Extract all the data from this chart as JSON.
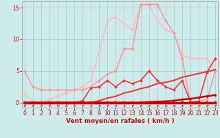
{
  "x": [
    0,
    1,
    2,
    3,
    4,
    5,
    6,
    7,
    8,
    9,
    10,
    11,
    12,
    13,
    14,
    15,
    16,
    17,
    18,
    19,
    20,
    21,
    22,
    23
  ],
  "lines": [
    {
      "y": [
        0.0,
        0.0,
        0.0,
        0.0,
        0.0,
        0.0,
        0.0,
        0.0,
        0.0,
        0.0,
        0.0,
        0.0,
        0.0,
        0.0,
        0.0,
        0.0,
        0.0,
        0.0,
        0.0,
        0.0,
        0.0,
        0.0,
        0.0,
        0.0
      ],
      "color": "#cc0000",
      "lw": 2.5,
      "marker": "s",
      "ms": 2.5,
      "zorder": 10
    },
    {
      "y": [
        0.0,
        0.0,
        0.0,
        0.0,
        0.0,
        0.0,
        0.0,
        0.0,
        0.0,
        0.0,
        0.0,
        0.0,
        0.0,
        0.0,
        0.0,
        0.1,
        0.15,
        0.2,
        0.3,
        0.5,
        0.6,
        0.8,
        1.0,
        1.2
      ],
      "color": "#cc0000",
      "lw": 1.8,
      "marker": "D",
      "ms": 2.0,
      "zorder": 9
    },
    {
      "y": [
        0.0,
        0.0,
        0.0,
        0.0,
        0.0,
        0.0,
        0.0,
        0.0,
        0.0,
        0.3,
        0.7,
        1.0,
        1.5,
        1.8,
        2.2,
        2.5,
        3.0,
        3.2,
        3.5,
        4.0,
        4.3,
        4.6,
        4.9,
        5.2
      ],
      "color": "#ff3333",
      "lw": 1.5,
      "marker": null,
      "ms": 0,
      "zorder": 8
    },
    {
      "y": [
        0.0,
        0.0,
        0.0,
        0.0,
        0.0,
        0.0,
        0.0,
        0.3,
        2.3,
        2.5,
        3.5,
        2.5,
        3.5,
        3.0,
        3.5,
        5.0,
        3.5,
        2.5,
        2.0,
        3.5,
        0.1,
        0.2,
        4.8,
        7.0
      ],
      "color": "#ff3333",
      "lw": 1.2,
      "marker": "D",
      "ms": 2.5,
      "zorder": 7
    },
    {
      "y": [
        5.0,
        2.5,
        2.0,
        2.0,
        2.0,
        2.0,
        2.0,
        2.0,
        2.5,
        3.5,
        4.5,
        5.0,
        8.5,
        8.5,
        15.5,
        15.5,
        15.5,
        13.0,
        11.0,
        7.0,
        0.0,
        0.2,
        0.5,
        5.0
      ],
      "color": "#ff9999",
      "lw": 1.2,
      "marker": "D",
      "ms": 2.5,
      "zorder": 3
    },
    {
      "y": [
        1.5,
        0.0,
        0.0,
        0.5,
        1.0,
        1.5,
        2.0,
        2.5,
        3.5,
        8.0,
        13.0,
        13.5,
        12.5,
        11.5,
        15.5,
        15.5,
        13.0,
        11.5,
        11.0,
        7.5,
        7.0,
        7.0,
        7.0,
        5.0
      ],
      "color": "#ffbbbb",
      "lw": 1.2,
      "marker": "D",
      "ms": 2.5,
      "zorder": 2
    }
  ],
  "xlabel": "Vent moyen/en rafales ( km/h )",
  "xlim": [
    -0.3,
    23.3
  ],
  "ylim": [
    -0.8,
    16.0
  ],
  "yticks": [
    0,
    5,
    10,
    15
  ],
  "xticks": [
    0,
    1,
    2,
    3,
    4,
    5,
    6,
    7,
    8,
    9,
    10,
    11,
    12,
    13,
    14,
    15,
    16,
    17,
    18,
    19,
    20,
    21,
    22,
    23
  ],
  "bg_color": "#ceeaea",
  "grid_color": "#aad4d4",
  "label_color": "#cc0000",
  "tick_color": "#cc0000",
  "xlabel_fontsize": 6.5,
  "tick_fontsize": 5.5
}
